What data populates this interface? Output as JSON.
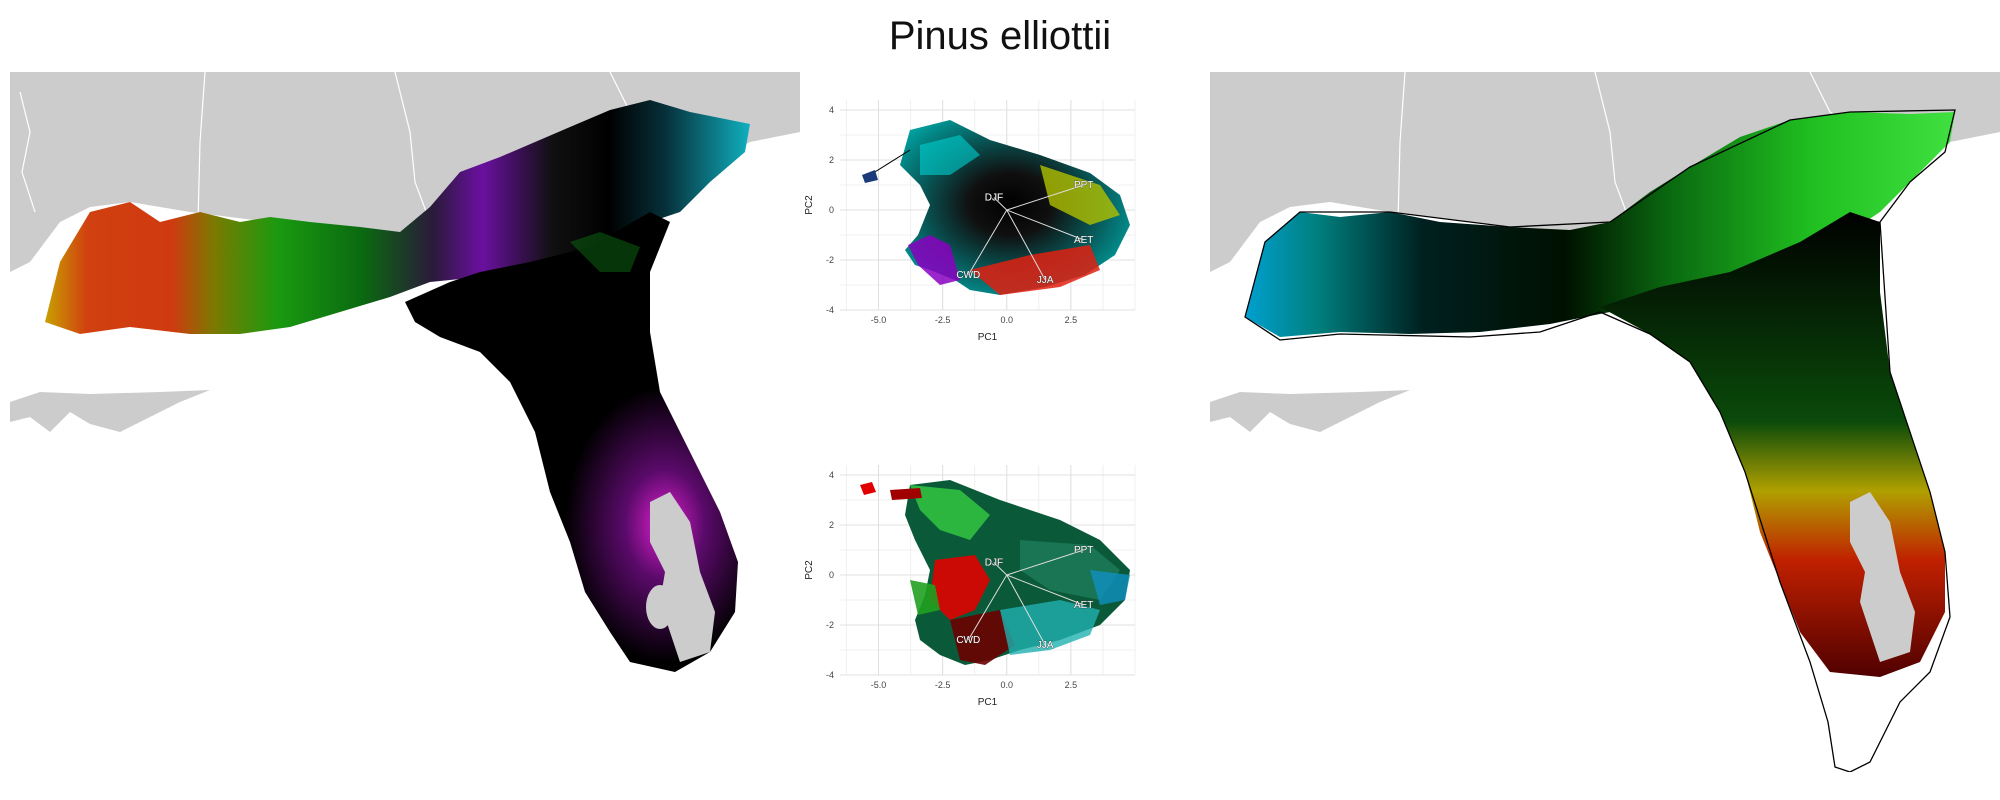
{
  "title": "Pinus elliottii",
  "colors": {
    "background_land": "#cccccc",
    "boundary": "#ffffff",
    "outline": "#000000",
    "grid": "#e6e6e6"
  },
  "chart_data": [
    {
      "type": "map",
      "panel": "left",
      "description_colors": [
        "red",
        "yellow",
        "green",
        "black",
        "purple",
        "magenta",
        "cyan"
      ]
    },
    {
      "type": "biplot",
      "panel": "center-top",
      "xlabel": "PC1",
      "ylabel": "PC2",
      "xlim": [
        -6.5,
        5
      ],
      "ylim": [
        -4,
        4.4
      ],
      "xticks": [
        "-5.0",
        "-2.5",
        "0.0",
        "2.5"
      ],
      "xtick_values": [
        -5,
        -2.5,
        0,
        2.5
      ],
      "yticks": [
        "4",
        "2",
        "0",
        "-2",
        "-4"
      ],
      "ytick_values": [
        4,
        2,
        0,
        -2,
        -4
      ],
      "vectors": [
        {
          "label": "DJF",
          "x": -0.5,
          "y": 0.5
        },
        {
          "label": "PPT",
          "x": 3.0,
          "y": 1.0
        },
        {
          "label": "AET",
          "x": 3.0,
          "y": -1.2
        },
        {
          "label": "JJA",
          "x": 1.5,
          "y": -2.8
        },
        {
          "label": "CWD",
          "x": -1.5,
          "y": -2.6
        }
      ]
    },
    {
      "type": "scatter",
      "panel": "center-bottom",
      "xlabel": "PC1",
      "ylabel": "PC2",
      "xlim": [
        -6.5,
        5
      ],
      "ylim": [
        -4,
        4.4
      ],
      "xticks": [
        "-5.0",
        "-2.5",
        "0.0",
        "2.5"
      ],
      "xtick_values": [
        -5,
        -2.5,
        0,
        2.5
      ],
      "yticks": [
        "4",
        "2",
        "0",
        "-2",
        "-4"
      ],
      "ytick_values": [
        4,
        2,
        0,
        -2,
        -4
      ],
      "vectors": [
        {
          "label": "DJF",
          "x": -0.5,
          "y": 0.5
        },
        {
          "label": "PPT",
          "x": 3.0,
          "y": 1.0
        },
        {
          "label": "AET",
          "x": 3.0,
          "y": -1.2
        },
        {
          "label": "JJA",
          "x": 1.5,
          "y": -2.8
        },
        {
          "label": "CWD",
          "x": -1.5,
          "y": -2.6
        }
      ]
    },
    {
      "type": "map",
      "panel": "right",
      "description_colors": [
        "cyan",
        "black",
        "green",
        "yellow",
        "red"
      ]
    }
  ]
}
